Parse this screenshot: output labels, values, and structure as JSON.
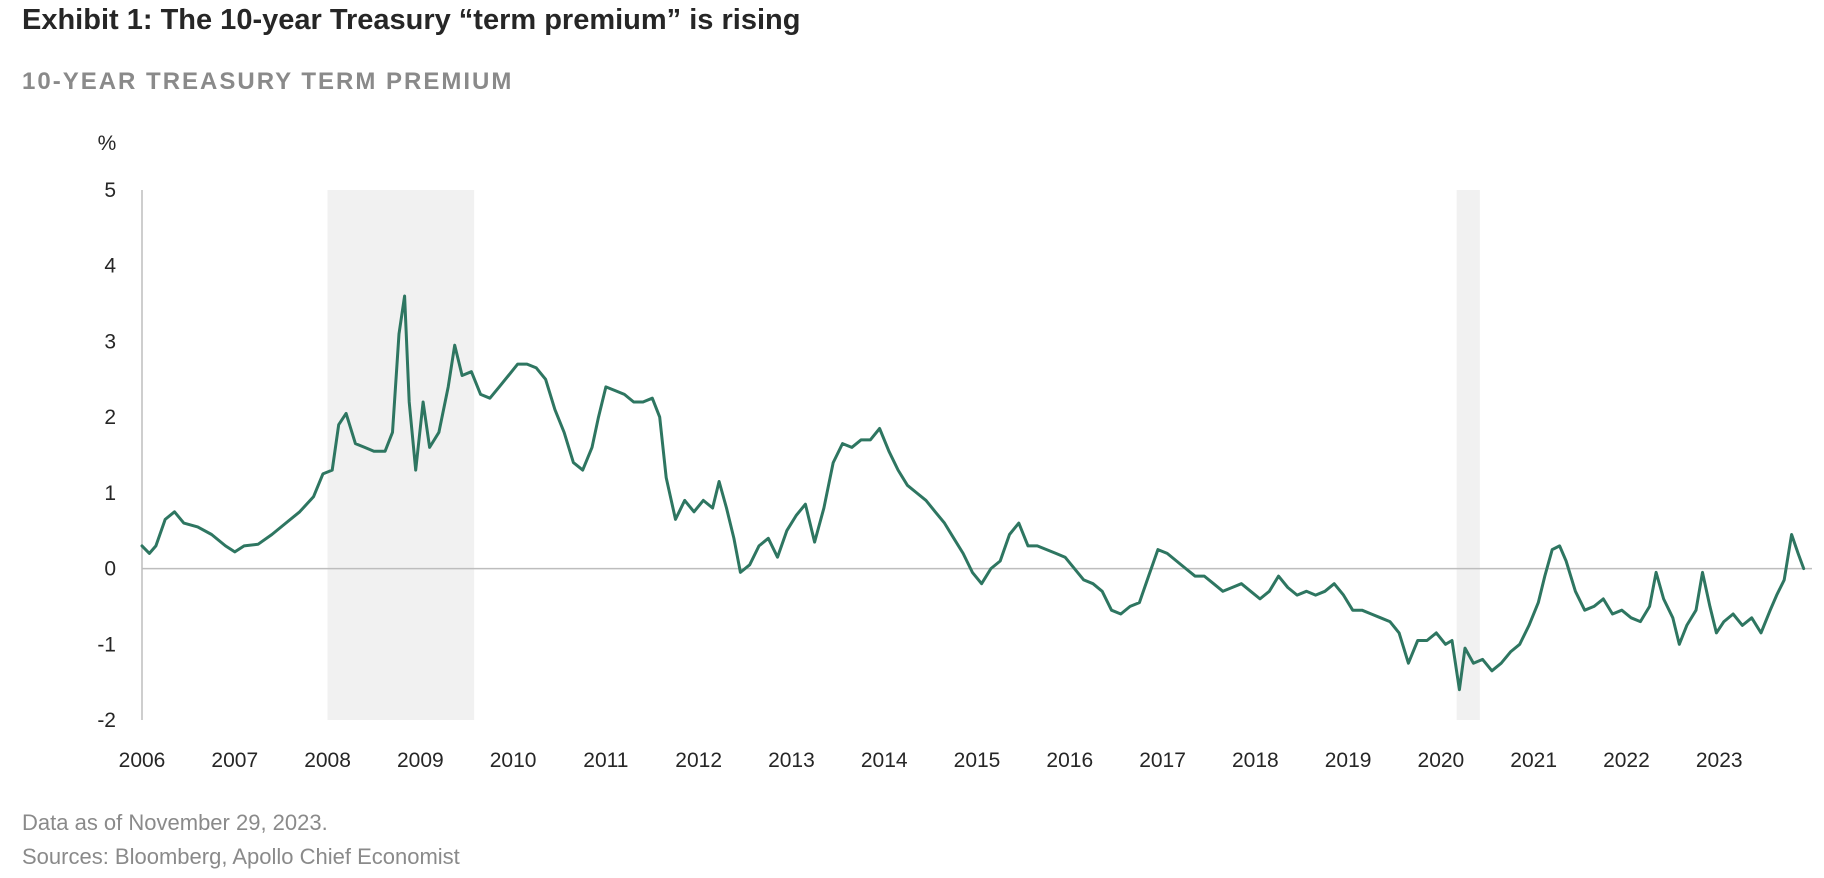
{
  "header": {
    "title": "Exhibit 1: The 10-year Treasury “term premium” is rising",
    "subtitle": "10-YEAR TREASURY TERM PREMIUM"
  },
  "footer": {
    "data_note": "Data as of November 29, 2023.",
    "sources": "Sources: Bloomberg, Apollo Chief Economist"
  },
  "colors": {
    "series": "#2e7661",
    "shade": "#f1f1f1",
    "axis": "#bdbdbd",
    "text": "#262626"
  },
  "chart_data": {
    "type": "line",
    "title": "10-YEAR TREASURY TERM PREMIUM",
    "ylabel": "%",
    "xlabel": "",
    "ylim": [
      -2,
      5
    ],
    "xlim": [
      2006.0,
      2024.0
    ],
    "yticks": [
      5,
      4,
      3,
      2,
      1,
      0,
      -1,
      -2
    ],
    "xticks": [
      "2006",
      "2007",
      "2008",
      "2009",
      "2010",
      "2011",
      "2012",
      "2013",
      "2014",
      "2015",
      "2016",
      "2017",
      "2018",
      "2019",
      "2020",
      "2021",
      "2022",
      "2023"
    ],
    "grid": false,
    "zero_line": true,
    "shaded_periods": [
      [
        2008.0,
        2009.58
      ],
      [
        2020.17,
        2020.42
      ]
    ],
    "series": [
      {
        "values": [
          [
            2006.0,
            0.3
          ],
          [
            2006.08,
            0.2
          ],
          [
            2006.15,
            0.3
          ],
          [
            2006.25,
            0.65
          ],
          [
            2006.35,
            0.75
          ],
          [
            2006.45,
            0.6
          ],
          [
            2006.6,
            0.55
          ],
          [
            2006.75,
            0.45
          ],
          [
            2006.9,
            0.3
          ],
          [
            2007.0,
            0.22
          ],
          [
            2007.1,
            0.3
          ],
          [
            2007.25,
            0.32
          ],
          [
            2007.4,
            0.45
          ],
          [
            2007.55,
            0.6
          ],
          [
            2007.7,
            0.75
          ],
          [
            2007.85,
            0.95
          ],
          [
            2007.95,
            1.25
          ],
          [
            2008.05,
            1.3
          ],
          [
            2008.12,
            1.9
          ],
          [
            2008.2,
            2.05
          ],
          [
            2008.3,
            1.65
          ],
          [
            2008.4,
            1.6
          ],
          [
            2008.5,
            1.55
          ],
          [
            2008.62,
            1.55
          ],
          [
            2008.7,
            1.8
          ],
          [
            2008.77,
            3.1
          ],
          [
            2008.83,
            3.6
          ],
          [
            2008.88,
            2.2
          ],
          [
            2008.95,
            1.3
          ],
          [
            2009.03,
            2.2
          ],
          [
            2009.1,
            1.6
          ],
          [
            2009.2,
            1.8
          ],
          [
            2009.3,
            2.4
          ],
          [
            2009.37,
            2.95
          ],
          [
            2009.45,
            2.55
          ],
          [
            2009.55,
            2.6
          ],
          [
            2009.65,
            2.3
          ],
          [
            2009.75,
            2.25
          ],
          [
            2009.85,
            2.4
          ],
          [
            2009.95,
            2.55
          ],
          [
            2010.05,
            2.7
          ],
          [
            2010.15,
            2.7
          ],
          [
            2010.25,
            2.65
          ],
          [
            2010.35,
            2.5
          ],
          [
            2010.45,
            2.1
          ],
          [
            2010.55,
            1.8
          ],
          [
            2010.65,
            1.4
          ],
          [
            2010.75,
            1.3
          ],
          [
            2010.85,
            1.6
          ],
          [
            2010.92,
            2.0
          ],
          [
            2011.0,
            2.4
          ],
          [
            2011.1,
            2.35
          ],
          [
            2011.2,
            2.3
          ],
          [
            2011.3,
            2.2
          ],
          [
            2011.4,
            2.2
          ],
          [
            2011.5,
            2.25
          ],
          [
            2011.58,
            2.0
          ],
          [
            2011.65,
            1.2
          ],
          [
            2011.75,
            0.65
          ],
          [
            2011.85,
            0.9
          ],
          [
            2011.95,
            0.75
          ],
          [
            2012.05,
            0.9
          ],
          [
            2012.15,
            0.8
          ],
          [
            2012.22,
            1.15
          ],
          [
            2012.3,
            0.8
          ],
          [
            2012.38,
            0.4
          ],
          [
            2012.45,
            -0.05
          ],
          [
            2012.55,
            0.05
          ],
          [
            2012.65,
            0.3
          ],
          [
            2012.75,
            0.4
          ],
          [
            2012.85,
            0.15
          ],
          [
            2012.95,
            0.5
          ],
          [
            2013.05,
            0.7
          ],
          [
            2013.15,
            0.85
          ],
          [
            2013.25,
            0.35
          ],
          [
            2013.35,
            0.8
          ],
          [
            2013.45,
            1.4
          ],
          [
            2013.55,
            1.65
          ],
          [
            2013.65,
            1.6
          ],
          [
            2013.75,
            1.7
          ],
          [
            2013.85,
            1.7
          ],
          [
            2013.95,
            1.85
          ],
          [
            2014.05,
            1.55
          ],
          [
            2014.15,
            1.3
          ],
          [
            2014.25,
            1.1
          ],
          [
            2014.35,
            1.0
          ],
          [
            2014.45,
            0.9
          ],
          [
            2014.55,
            0.75
          ],
          [
            2014.65,
            0.6
          ],
          [
            2014.75,
            0.4
          ],
          [
            2014.85,
            0.2
          ],
          [
            2014.95,
            -0.05
          ],
          [
            2015.05,
            -0.2
          ],
          [
            2015.15,
            0.0
          ],
          [
            2015.25,
            0.1
          ],
          [
            2015.35,
            0.45
          ],
          [
            2015.45,
            0.6
          ],
          [
            2015.55,
            0.3
          ],
          [
            2015.65,
            0.3
          ],
          [
            2015.75,
            0.25
          ],
          [
            2015.85,
            0.2
          ],
          [
            2015.95,
            0.15
          ],
          [
            2016.05,
            0.0
          ],
          [
            2016.15,
            -0.15
          ],
          [
            2016.25,
            -0.2
          ],
          [
            2016.35,
            -0.3
          ],
          [
            2016.45,
            -0.55
          ],
          [
            2016.55,
            -0.6
          ],
          [
            2016.65,
            -0.5
          ],
          [
            2016.75,
            -0.45
          ],
          [
            2016.85,
            -0.1
          ],
          [
            2016.95,
            0.25
          ],
          [
            2017.05,
            0.2
          ],
          [
            2017.15,
            0.1
          ],
          [
            2017.25,
            0.0
          ],
          [
            2017.35,
            -0.1
          ],
          [
            2017.45,
            -0.1
          ],
          [
            2017.55,
            -0.2
          ],
          [
            2017.65,
            -0.3
          ],
          [
            2017.75,
            -0.25
          ],
          [
            2017.85,
            -0.2
          ],
          [
            2017.95,
            -0.3
          ],
          [
            2018.05,
            -0.4
          ],
          [
            2018.15,
            -0.3
          ],
          [
            2018.25,
            -0.1
          ],
          [
            2018.35,
            -0.25
          ],
          [
            2018.45,
            -0.35
          ],
          [
            2018.55,
            -0.3
          ],
          [
            2018.65,
            -0.35
          ],
          [
            2018.75,
            -0.3
          ],
          [
            2018.85,
            -0.2
          ],
          [
            2018.95,
            -0.35
          ],
          [
            2019.05,
            -0.55
          ],
          [
            2019.15,
            -0.55
          ],
          [
            2019.25,
            -0.6
          ],
          [
            2019.35,
            -0.65
          ],
          [
            2019.45,
            -0.7
          ],
          [
            2019.55,
            -0.85
          ],
          [
            2019.65,
            -1.25
          ],
          [
            2019.75,
            -0.95
          ],
          [
            2019.85,
            -0.95
          ],
          [
            2019.95,
            -0.85
          ],
          [
            2020.05,
            -1.0
          ],
          [
            2020.12,
            -0.95
          ],
          [
            2020.2,
            -1.6
          ],
          [
            2020.26,
            -1.05
          ],
          [
            2020.35,
            -1.25
          ],
          [
            2020.45,
            -1.2
          ],
          [
            2020.55,
            -1.35
          ],
          [
            2020.65,
            -1.25
          ],
          [
            2020.75,
            -1.1
          ],
          [
            2020.85,
            -1.0
          ],
          [
            2020.95,
            -0.75
          ],
          [
            2021.05,
            -0.45
          ],
          [
            2021.12,
            -0.1
          ],
          [
            2021.2,
            0.25
          ],
          [
            2021.28,
            0.3
          ],
          [
            2021.35,
            0.1
          ],
          [
            2021.45,
            -0.3
          ],
          [
            2021.55,
            -0.55
          ],
          [
            2021.65,
            -0.5
          ],
          [
            2021.75,
            -0.4
          ],
          [
            2021.85,
            -0.6
          ],
          [
            2021.95,
            -0.55
          ],
          [
            2022.05,
            -0.65
          ],
          [
            2022.15,
            -0.7
          ],
          [
            2022.25,
            -0.5
          ],
          [
            2022.32,
            -0.05
          ],
          [
            2022.4,
            -0.4
          ],
          [
            2022.5,
            -0.65
          ],
          [
            2022.57,
            -1.0
          ],
          [
            2022.65,
            -0.75
          ],
          [
            2022.75,
            -0.55
          ],
          [
            2022.82,
            -0.05
          ],
          [
            2022.9,
            -0.5
          ],
          [
            2022.97,
            -0.85
          ],
          [
            2023.05,
            -0.7
          ],
          [
            2023.15,
            -0.6
          ],
          [
            2023.25,
            -0.75
          ],
          [
            2023.35,
            -0.65
          ],
          [
            2023.45,
            -0.85
          ],
          [
            2023.55,
            -0.55
          ],
          [
            2023.62,
            -0.35
          ],
          [
            2023.7,
            -0.15
          ],
          [
            2023.78,
            0.45
          ],
          [
            2023.85,
            0.2
          ],
          [
            2023.91,
            0.0
          ]
        ]
      }
    ]
  }
}
